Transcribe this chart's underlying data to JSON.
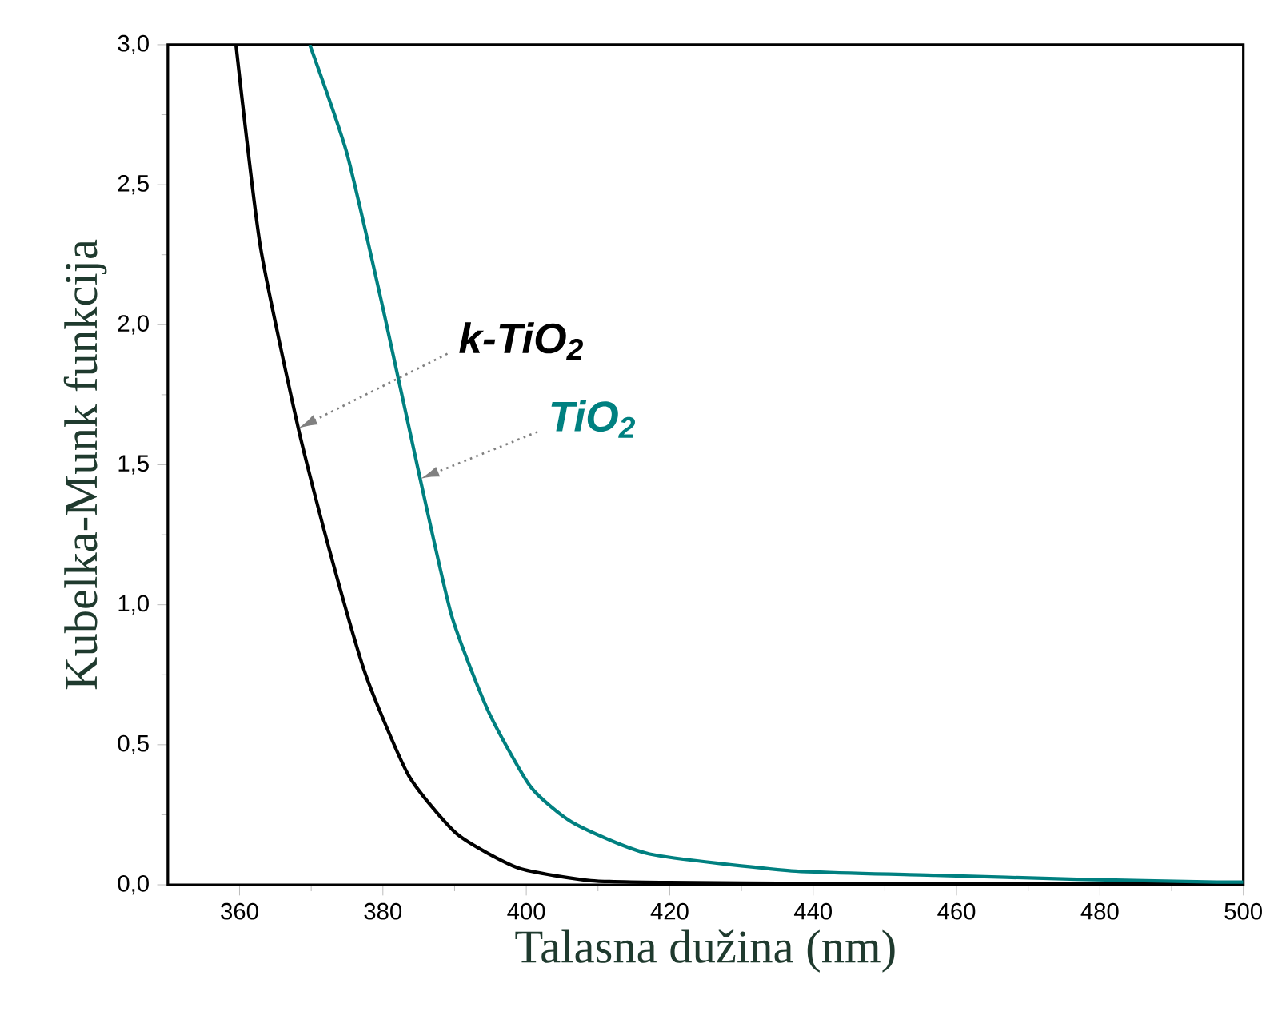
{
  "chart_data": {
    "type": "line",
    "xlabel": "Talasna dužina (nm)",
    "ylabel": "Kubelka-Munk funkcija",
    "xlim": [
      350,
      500
    ],
    "xticks": [
      360,
      380,
      400,
      420,
      440,
      460,
      480,
      500
    ],
    "ylim": [
      0,
      3
    ],
    "yticks": [
      {
        "value": 0,
        "label": "0,0"
      },
      {
        "value": 0.5,
        "label": "0,5"
      },
      {
        "value": 1,
        "label": "1,0"
      },
      {
        "value": 1.5,
        "label": "1,5"
      },
      {
        "value": 2,
        "label": "2,0"
      },
      {
        "value": 2.5,
        "label": "2,5"
      },
      {
        "value": 3,
        "label": "3,0"
      }
    ],
    "series": [
      {
        "name": "k-TiO$_{2}$",
        "color": "#000000",
        "x": [
          359.5,
          362.9,
          368.2,
          372.6,
          377.6,
          383.6,
          390.4,
          398.9,
          409,
          420,
          440,
          460,
          480,
          500
        ],
        "values": [
          3.0,
          2.28,
          1.63,
          1.19,
          0.75,
          0.39,
          0.18,
          0.06,
          0.015,
          0.008,
          0.005,
          0.004,
          0.003,
          0.003
        ]
      },
      {
        "name": "TiO$_{2}$",
        "color": "#008080",
        "x": [
          369.8,
          375,
          380,
          385.2,
          389.6,
          394.7,
          400.6,
          406.6,
          417.2,
          437,
          457,
          476.8,
          496.3,
          500
        ],
        "values": [
          3.0,
          2.61,
          2.06,
          1.45,
          0.96,
          0.62,
          0.35,
          0.22,
          0.11,
          0.05,
          0.034,
          0.02,
          0.01,
          0.01
        ]
      }
    ],
    "legend": false,
    "grid": false,
    "marker": "none",
    "line_style": "solid"
  }
}
